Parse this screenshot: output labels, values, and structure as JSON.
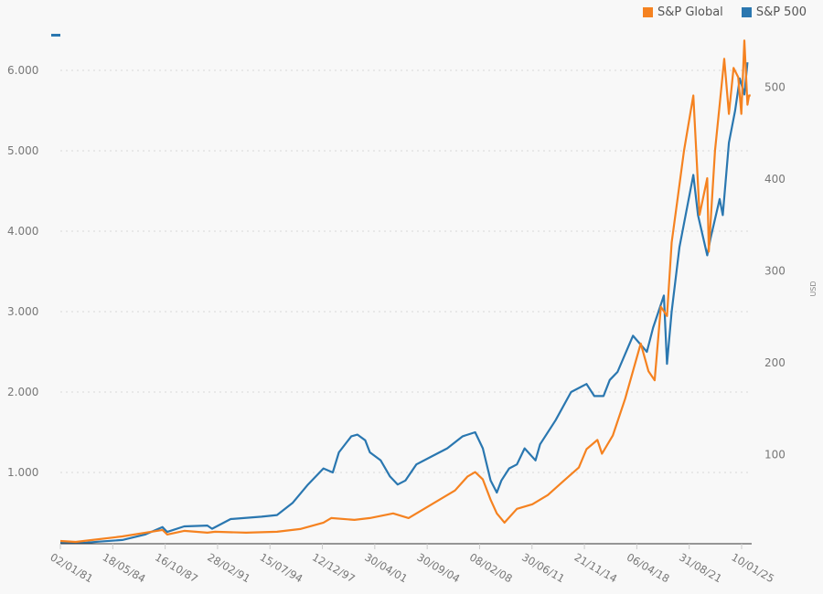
{
  "chart_data": {
    "type": "line",
    "title": "",
    "xlabel": "",
    "ylabel_left": "",
    "ylabel_right": "USD",
    "legend_position": "top-right",
    "grid": true,
    "x_ticks": [
      "02/01/81",
      "18/05/84",
      "16/10/87",
      "28/02/91",
      "15/07/94",
      "12/12/97",
      "30/04/01",
      "30/09/04",
      "08/02/08",
      "30/06/11",
      "21/11/14",
      "06/04/18",
      "31/08/21",
      "10/01/25"
    ],
    "y_left_ticks": [
      "1.000",
      "2.000",
      "3.000",
      "4.000",
      "5.000",
      "6.000"
    ],
    "y_left_values": [
      1000,
      2000,
      3000,
      4000,
      5000,
      6000
    ],
    "y_left_range": [
      0,
      6000
    ],
    "y_right_ticks": [
      "100",
      "200",
      "300",
      "400",
      "500"
    ],
    "y_right_values": [
      100,
      200,
      300,
      400,
      500
    ],
    "y_right_range": [
      0,
      550
    ],
    "x_range": [
      1981.0,
      2025.6
    ],
    "series": [
      {
        "name": "S&P 500",
        "axis": "left",
        "color": "#2a77b0",
        "x": [
          1981.0,
          1982.0,
          1982.6,
          1983.5,
          1985.0,
          1986.5,
          1987.6,
          1987.9,
          1989.0,
          1990.5,
          1990.8,
          1992.0,
          1994.0,
          1995.0,
          1996.0,
          1997.0,
          1998.0,
          1998.6,
          1999.0,
          1999.8,
          2000.2,
          2000.7,
          2001.0,
          2001.7,
          2002.3,
          2002.8,
          2003.3,
          2004.0,
          2005.0,
          2006.0,
          2007.0,
          2007.8,
          2008.3,
          2008.8,
          2009.2,
          2009.5,
          2010.0,
          2010.5,
          2011.0,
          2011.7,
          2012.0,
          2013.0,
          2014.0,
          2015.0,
          2015.5,
          2016.1,
          2016.5,
          2017.0,
          2018.0,
          2018.9,
          2019.3,
          2020.0,
          2020.2,
          2020.5,
          2021.0,
          2021.9,
          2022.2,
          2022.8,
          2023.0,
          2023.6,
          2023.8,
          2024.2,
          2024.6,
          2024.9,
          2025.2,
          2025.4
        ],
        "y": [
          110,
          100,
          85,
          140,
          160,
          230,
          320,
          260,
          330,
          340,
          300,
          420,
          450,
          470,
          620,
          850,
          1050,
          1000,
          1250,
          1450,
          1470,
          1400,
          1250,
          1150,
          950,
          850,
          900,
          1100,
          1200,
          1300,
          1450,
          1500,
          1300,
          900,
          750,
          900,
          1050,
          1100,
          1300,
          1150,
          1350,
          1650,
          2000,
          2100,
          1950,
          1950,
          2150,
          2250,
          2700,
          2500,
          2800,
          3200,
          2350,
          3000,
          3800,
          4700,
          4200,
          3700,
          3900,
          4400,
          4200,
          5100,
          5500,
          5900,
          5700,
          6100
        ]
      },
      {
        "name": "S&P Global",
        "axis": "right",
        "color": "#f58220",
        "x": [
          1981.0,
          1982.0,
          1983.0,
          1985.0,
          1987.6,
          1987.9,
          1989.0,
          1990.5,
          1991.0,
          1993.0,
          1995.0,
          1996.5,
          1998.0,
          1998.5,
          2000.0,
          2001.0,
          2002.5,
          2003.5,
          2005.0,
          2006.5,
          2007.3,
          2007.8,
          2008.3,
          2008.8,
          2009.2,
          2009.7,
          2010.5,
          2011.5,
          2012.5,
          2013.5,
          2014.5,
          2015.0,
          2015.7,
          2016.0,
          2016.7,
          2017.5,
          2018.5,
          2019.0,
          2019.4,
          2019.8,
          2020.2,
          2020.5,
          2020.9,
          2021.3,
          2021.9,
          2022.3,
          2022.8,
          2022.9,
          2023.3,
          2023.6,
          2023.9,
          2024.2,
          2024.5,
          2024.8,
          2025.0,
          2025.2,
          2025.4,
          2025.5,
          2025.6
        ],
        "y": [
          5,
          4,
          6,
          10,
          17,
          12,
          16,
          14,
          15,
          14,
          15,
          18,
          25,
          30,
          28,
          30,
          35,
          30,
          45,
          60,
          75,
          80,
          72,
          50,
          35,
          25,
          40,
          45,
          55,
          70,
          85,
          105,
          115,
          100,
          120,
          160,
          220,
          190,
          180,
          260,
          250,
          330,
          380,
          430,
          490,
          360,
          400,
          320,
          430,
          480,
          530,
          470,
          520,
          510,
          470,
          550,
          480,
          490,
          490
        ]
      }
    ]
  },
  "legend": {
    "items": [
      {
        "label": "S&P Global",
        "color": "#f58220"
      },
      {
        "label": "S&P 500",
        "color": "#2a77b0"
      }
    ]
  }
}
